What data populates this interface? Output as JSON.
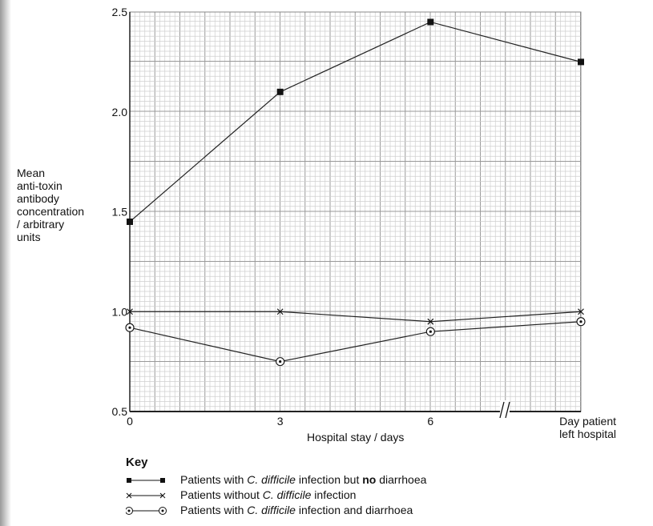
{
  "chart_data": {
    "type": "line",
    "ylabel": [
      "Mean",
      "anti-toxin",
      "antibody",
      "concentration",
      "/ arbitrary",
      "units"
    ],
    "xlabel": "Hospital stay / days",
    "categories": [
      "0",
      "3",
      "6",
      "Day patient left hospital"
    ],
    "x_tick_labels": [
      "0",
      "3",
      "6",
      "Day patient",
      "left hospital"
    ],
    "y_ticks": [
      "0.5",
      "1.0",
      "1.5",
      "2.0",
      "2.5"
    ],
    "ylim": [
      0.5,
      2.5
    ],
    "grid": true,
    "axis_break": "between 6 and day patient left hospital",
    "series": [
      {
        "name_parts": [
          "Patients with ",
          "C. difficile",
          " infection but ",
          "no",
          " diarrhoea"
        ],
        "marker": "filled-square",
        "values": [
          1.45,
          2.1,
          2.45,
          2.25
        ]
      },
      {
        "name_parts": [
          "Patients without ",
          "C. difficile",
          " infection"
        ],
        "marker": "cross",
        "values": [
          1.0,
          1.0,
          0.95,
          1.0
        ]
      },
      {
        "name_parts": [
          "Patients with ",
          "C. difficile",
          " infection and diarrhoea"
        ],
        "marker": "circled-dot",
        "values": [
          0.92,
          0.75,
          0.9,
          0.95
        ]
      }
    ],
    "legend_title": "Key",
    "legend_position": "bottom-left"
  }
}
